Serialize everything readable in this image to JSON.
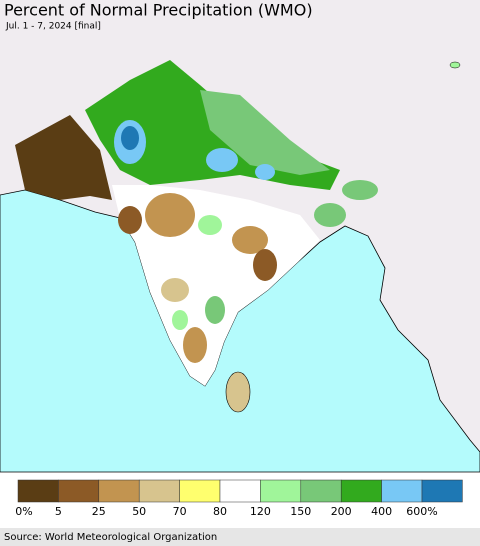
{
  "header": {
    "title": "Percent of Normal Precipitation (WMO)",
    "subtitle": "Jul. 1 - 7, 2024 [final]"
  },
  "legend": {
    "labels": [
      "0%",
      "5",
      "25",
      "50",
      "70",
      "80",
      "120",
      "150",
      "200",
      "400",
      "600%"
    ],
    "colors": [
      "#5a3d14",
      "#8c5a26",
      "#c29450",
      "#d7c48e",
      "#ffff6e",
      "#ffffff",
      "#a0f59a",
      "#78c878",
      "#32aa1e",
      "#78c8f5",
      "#1e78b4"
    ]
  },
  "footer": {
    "source": "Source: World Meteorological Organization"
  }
}
